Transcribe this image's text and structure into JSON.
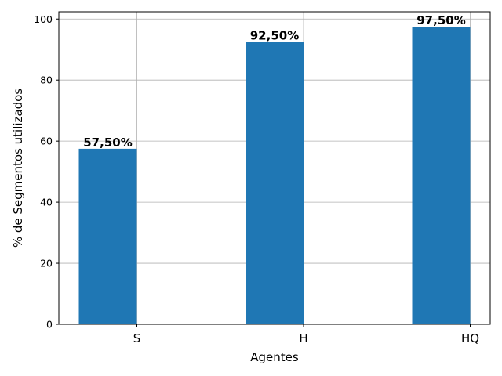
{
  "chart_data": {
    "type": "bar",
    "categories": [
      "S",
      "H",
      "HQ"
    ],
    "values": [
      57.5,
      92.5,
      97.5
    ],
    "data_labels": [
      "57,50%",
      "92,50%",
      "97,50%"
    ],
    "title": "",
    "xlabel": "Agentes",
    "ylabel": "% de Segmentos utilizados",
    "ylim": [
      0,
      102.375
    ],
    "yticks": [
      0,
      20,
      40,
      60,
      80,
      100
    ],
    "grid": true,
    "bar_color": "#1f77b4",
    "bar_alignment": "bars drawn left of category tick"
  }
}
